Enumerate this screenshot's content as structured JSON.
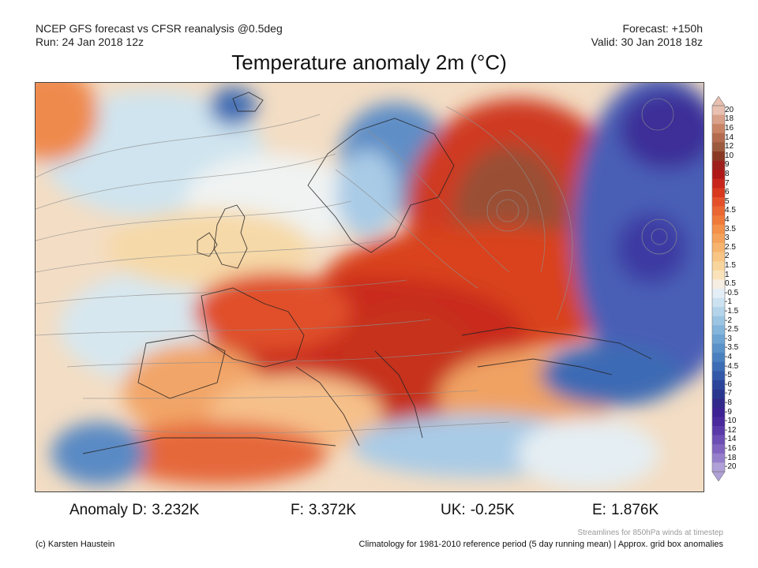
{
  "header": {
    "model_line": "NCEP GFS forecast vs CFSR reanalysis @0.5deg",
    "run_line": "Run: 24 Jan 2018 12z",
    "forecast_line": "Forecast: +150h",
    "valid_line": "Valid: 30 Jan 2018 18z"
  },
  "title": "Temperature anomaly 2m (°C)",
  "colorbar": {
    "labels": [
      "20",
      "18",
      "16",
      "14",
      "12",
      "10",
      "9",
      "8",
      "7",
      "6",
      "5",
      "4.5",
      "4",
      "3.5",
      "3",
      "2.5",
      "2",
      "1.5",
      "1",
      "0.5",
      "-0.5",
      "-1",
      "-1.5",
      "-2",
      "-2.5",
      "-3",
      "-3.5",
      "-4",
      "-4.5",
      "-5",
      "-6",
      "-7",
      "-8",
      "-9",
      "-10",
      "-12",
      "-14",
      "-16",
      "-18",
      "-20"
    ],
    "colors": [
      "#e8bfb0",
      "#d9a08a",
      "#c98466",
      "#b46b4e",
      "#9c5a3e",
      "#8a3a24",
      "#9e1f1c",
      "#b01818",
      "#c8261c",
      "#d8391f",
      "#e4502a",
      "#ea6632",
      "#f07a3a",
      "#f3904a",
      "#f5a35c",
      "#f7b46e",
      "#f8c585",
      "#f9d59e",
      "#fae3bb",
      "#f6eee2",
      "#e4eef6",
      "#cde2f0",
      "#b4d4ea",
      "#9cc5e3",
      "#84b5db",
      "#6ea4d2",
      "#5a92c9",
      "#4a80bf",
      "#3d6db5",
      "#3359a8",
      "#2c459b",
      "#29368e",
      "#322a8a",
      "#3c2292",
      "#4a2a9c",
      "#5a3aa8",
      "#6c4eb4",
      "#8064c0",
      "#9680cc",
      "#b0a0d8"
    ]
  },
  "stats": {
    "d_label": "Anomaly D:",
    "d_value": "3.232K",
    "f_label": "F:",
    "f_value": "3.372K",
    "uk_label": "UK:",
    "uk_value": "-0.25K",
    "e_label": "E:",
    "e_value": "1.876K"
  },
  "footer": {
    "streamlines_note": "Streamlines for 850hPa winds at timestep",
    "credit": "(c) Karsten Haustein",
    "climatology": "Climatology for 1981-2010 reference period (5 day running mean) | Approx. grid box anomalies"
  }
}
